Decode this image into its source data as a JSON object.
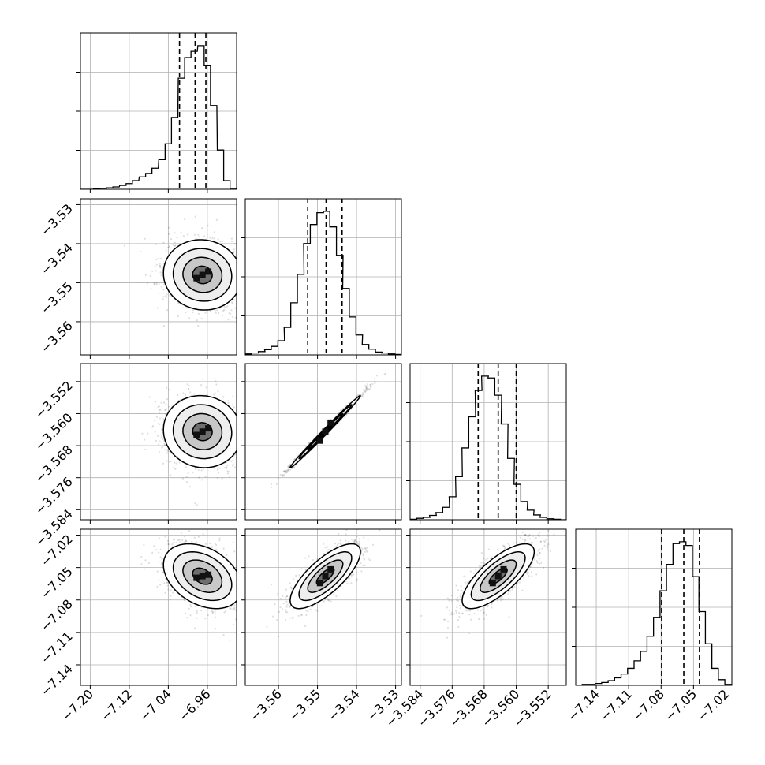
{
  "chart_data": {
    "type": "corner",
    "title": "",
    "grid": true,
    "parameters": [
      {
        "range": [
          -7.22,
          -6.9
        ],
        "ticks": [
          -7.2,
          -7.12,
          -7.04,
          -6.96
        ],
        "tick_labels": [
          "−7.20",
          "−7.12",
          "−7.04",
          "−6.96"
        ],
        "quantiles": [
          -7.017,
          -6.985,
          -6.963
        ],
        "hist_x": [
          -7.213,
          -7.2,
          -7.187,
          -7.173,
          -7.16,
          -7.147,
          -7.133,
          -7.12,
          -7.107,
          -7.093,
          -7.08,
          -7.067,
          -7.053,
          -7.04,
          -7.027,
          -7.013,
          -7.0,
          -6.987,
          -6.973,
          -6.96,
          -6.947,
          -6.933,
          -6.92,
          -6.907
        ],
        "hist_counts": [
          0,
          0,
          1,
          2,
          3,
          5,
          8,
          12,
          18,
          26,
          33,
          44,
          62,
          95,
          150,
          232,
          275,
          288,
          300,
          258,
          175,
          82,
          18,
          2
        ],
        "mean": -6.97,
        "sd": 0.04
      },
      {
        "range": [
          -3.5685,
          -3.5285
        ],
        "ticks": [
          -3.56,
          -3.55,
          -3.54,
          -3.53
        ],
        "tick_labels": [
          "−3.56",
          "−3.55",
          "−3.54",
          "−3.53"
        ],
        "quantiles": [
          -3.5525,
          -3.5478,
          -3.5437
        ],
        "hist_x": [
          -3.5677,
          -3.566,
          -3.5643,
          -3.5627,
          -3.561,
          -3.5593,
          -3.5577,
          -3.556,
          -3.5543,
          -3.5527,
          -3.551,
          -3.5493,
          -3.5477,
          -3.546,
          -3.5443,
          -3.5427,
          -3.541,
          -3.5393,
          -3.5377,
          -3.536,
          -3.5343,
          -3.5327,
          -3.531,
          -3.5293
        ],
        "hist_counts": [
          2,
          4,
          7,
          11,
          18,
          30,
          58,
          110,
          170,
          235,
          275,
          300,
          303,
          270,
          210,
          140,
          80,
          42,
          22,
          12,
          6,
          4,
          2,
          1
        ],
        "mean": -3.548,
        "sd": 0.0045
      },
      {
        "range": [
          -3.5865,
          -3.5475
        ],
        "ticks": [
          -3.584,
          -3.576,
          -3.568,
          -3.56,
          -3.552
        ],
        "tick_labels": [
          "−3.584",
          "−3.576",
          "−3.568",
          "−3.560",
          "−3.552"
        ],
        "quantiles": [
          -3.5695,
          -3.5645,
          -3.56
        ],
        "hist_x": [
          -3.5857,
          -3.584,
          -3.5824,
          -3.5808,
          -3.5792,
          -3.5775,
          -3.5759,
          -3.5743,
          -3.5727,
          -3.571,
          -3.5694,
          -3.5678,
          -3.5662,
          -3.5645,
          -3.5629,
          -3.5613,
          -3.5597,
          -3.558,
          -3.5564,
          -3.5548,
          -3.5532,
          -3.5515,
          -3.5499,
          -3.5483
        ],
        "hist_counts": [
          1,
          3,
          5,
          9,
          15,
          26,
          48,
          90,
          150,
          215,
          270,
          300,
          296,
          260,
          200,
          128,
          74,
          38,
          20,
          10,
          5,
          2,
          1,
          0
        ],
        "mean": -3.5645,
        "sd": 0.0045
      },
      {
        "range": [
          -7.159,
          -7.0145
        ],
        "ticks": [
          -7.14,
          -7.11,
          -7.08,
          -7.05,
          -7.02
        ],
        "tick_labels": [
          "−7.14",
          "−7.11",
          "−7.08",
          "−7.05",
          "−7.02"
        ],
        "quantiles": [
          -7.0795,
          -7.059,
          -7.0445
        ],
        "hist_x": [
          -7.156,
          -7.15,
          -7.144,
          -7.138,
          -7.132,
          -7.126,
          -7.12,
          -7.114,
          -7.108,
          -7.102,
          -7.096,
          -7.09,
          -7.084,
          -7.078,
          -7.072,
          -7.066,
          -7.06,
          -7.054,
          -7.048,
          -7.042,
          -7.036,
          -7.03,
          -7.024,
          -7.018
        ],
        "hist_counts": [
          0,
          1,
          1,
          2,
          3,
          5,
          8,
          12,
          18,
          26,
          36,
          52,
          72,
          100,
          128,
          150,
          152,
          148,
          115,
          78,
          44,
          18,
          6,
          1
        ],
        "mean": -7.058,
        "sd": 0.015
      }
    ],
    "correlations": {
      "1-0": -0.05,
      "2-0": -0.05,
      "2-1": 0.995,
      "3-0": -0.35,
      "3-1": 0.75,
      "3-2": 0.75
    },
    "contour_levels_sigma": [
      0.5,
      1.0,
      1.5,
      2.0
    ]
  }
}
